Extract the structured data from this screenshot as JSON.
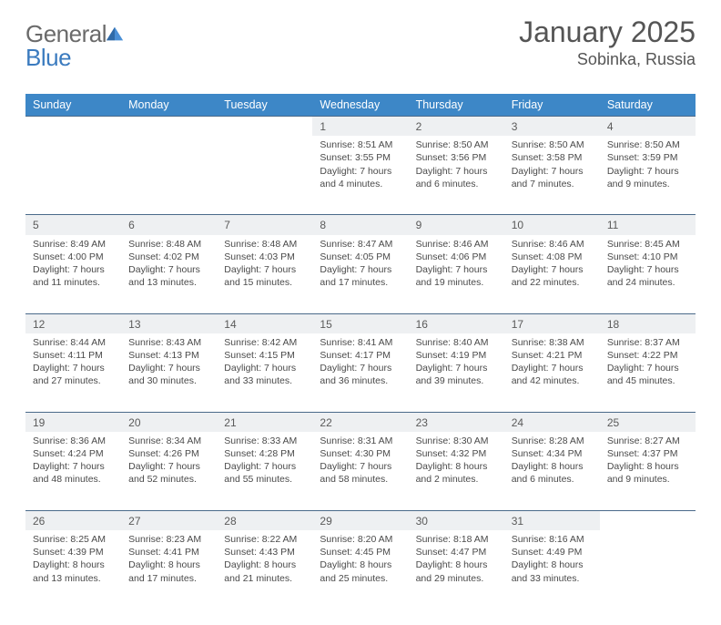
{
  "logo": {
    "general": "General",
    "blue": "Blue"
  },
  "header": {
    "title": "January 2025",
    "location": "Sobinka, Russia"
  },
  "daysOfWeek": [
    "Sunday",
    "Monday",
    "Tuesday",
    "Wednesday",
    "Thursday",
    "Friday",
    "Saturday"
  ],
  "colors": {
    "header_bg": "#3d87c7",
    "header_text": "#ffffff",
    "daynum_bg": "#eef0f2",
    "row_border": "#4a6a8a",
    "body_text": "#4a4a4a",
    "logo_gray": "#6a6a6a",
    "logo_blue": "#3b7bbf",
    "page_bg": "#ffffff"
  },
  "fonts": {
    "title_size": 32,
    "location_size": 18,
    "dow_size": 12.5,
    "daynum_size": 12,
    "cell_size": 10.5,
    "logo_size": 26
  },
  "weeks": [
    [
      null,
      null,
      null,
      {
        "n": "1",
        "sr": "8:51 AM",
        "ss": "3:55 PM",
        "dl": "7 hours and 4 minutes."
      },
      {
        "n": "2",
        "sr": "8:50 AM",
        "ss": "3:56 PM",
        "dl": "7 hours and 6 minutes."
      },
      {
        "n": "3",
        "sr": "8:50 AM",
        "ss": "3:58 PM",
        "dl": "7 hours and 7 minutes."
      },
      {
        "n": "4",
        "sr": "8:50 AM",
        "ss": "3:59 PM",
        "dl": "7 hours and 9 minutes."
      }
    ],
    [
      {
        "n": "5",
        "sr": "8:49 AM",
        "ss": "4:00 PM",
        "dl": "7 hours and 11 minutes."
      },
      {
        "n": "6",
        "sr": "8:48 AM",
        "ss": "4:02 PM",
        "dl": "7 hours and 13 minutes."
      },
      {
        "n": "7",
        "sr": "8:48 AM",
        "ss": "4:03 PM",
        "dl": "7 hours and 15 minutes."
      },
      {
        "n": "8",
        "sr": "8:47 AM",
        "ss": "4:05 PM",
        "dl": "7 hours and 17 minutes."
      },
      {
        "n": "9",
        "sr": "8:46 AM",
        "ss": "4:06 PM",
        "dl": "7 hours and 19 minutes."
      },
      {
        "n": "10",
        "sr": "8:46 AM",
        "ss": "4:08 PM",
        "dl": "7 hours and 22 minutes."
      },
      {
        "n": "11",
        "sr": "8:45 AM",
        "ss": "4:10 PM",
        "dl": "7 hours and 24 minutes."
      }
    ],
    [
      {
        "n": "12",
        "sr": "8:44 AM",
        "ss": "4:11 PM",
        "dl": "7 hours and 27 minutes."
      },
      {
        "n": "13",
        "sr": "8:43 AM",
        "ss": "4:13 PM",
        "dl": "7 hours and 30 minutes."
      },
      {
        "n": "14",
        "sr": "8:42 AM",
        "ss": "4:15 PM",
        "dl": "7 hours and 33 minutes."
      },
      {
        "n": "15",
        "sr": "8:41 AM",
        "ss": "4:17 PM",
        "dl": "7 hours and 36 minutes."
      },
      {
        "n": "16",
        "sr": "8:40 AM",
        "ss": "4:19 PM",
        "dl": "7 hours and 39 minutes."
      },
      {
        "n": "17",
        "sr": "8:38 AM",
        "ss": "4:21 PM",
        "dl": "7 hours and 42 minutes."
      },
      {
        "n": "18",
        "sr": "8:37 AM",
        "ss": "4:22 PM",
        "dl": "7 hours and 45 minutes."
      }
    ],
    [
      {
        "n": "19",
        "sr": "8:36 AM",
        "ss": "4:24 PM",
        "dl": "7 hours and 48 minutes."
      },
      {
        "n": "20",
        "sr": "8:34 AM",
        "ss": "4:26 PM",
        "dl": "7 hours and 52 minutes."
      },
      {
        "n": "21",
        "sr": "8:33 AM",
        "ss": "4:28 PM",
        "dl": "7 hours and 55 minutes."
      },
      {
        "n": "22",
        "sr": "8:31 AM",
        "ss": "4:30 PM",
        "dl": "7 hours and 58 minutes."
      },
      {
        "n": "23",
        "sr": "8:30 AM",
        "ss": "4:32 PM",
        "dl": "8 hours and 2 minutes."
      },
      {
        "n": "24",
        "sr": "8:28 AM",
        "ss": "4:34 PM",
        "dl": "8 hours and 6 minutes."
      },
      {
        "n": "25",
        "sr": "8:27 AM",
        "ss": "4:37 PM",
        "dl": "8 hours and 9 minutes."
      }
    ],
    [
      {
        "n": "26",
        "sr": "8:25 AM",
        "ss": "4:39 PM",
        "dl": "8 hours and 13 minutes."
      },
      {
        "n": "27",
        "sr": "8:23 AM",
        "ss": "4:41 PM",
        "dl": "8 hours and 17 minutes."
      },
      {
        "n": "28",
        "sr": "8:22 AM",
        "ss": "4:43 PM",
        "dl": "8 hours and 21 minutes."
      },
      {
        "n": "29",
        "sr": "8:20 AM",
        "ss": "4:45 PM",
        "dl": "8 hours and 25 minutes."
      },
      {
        "n": "30",
        "sr": "8:18 AM",
        "ss": "4:47 PM",
        "dl": "8 hours and 29 minutes."
      },
      {
        "n": "31",
        "sr": "8:16 AM",
        "ss": "4:49 PM",
        "dl": "8 hours and 33 minutes."
      },
      null
    ]
  ],
  "labels": {
    "sunrise": "Sunrise: ",
    "sunset": "Sunset: ",
    "daylight": "Daylight: "
  }
}
